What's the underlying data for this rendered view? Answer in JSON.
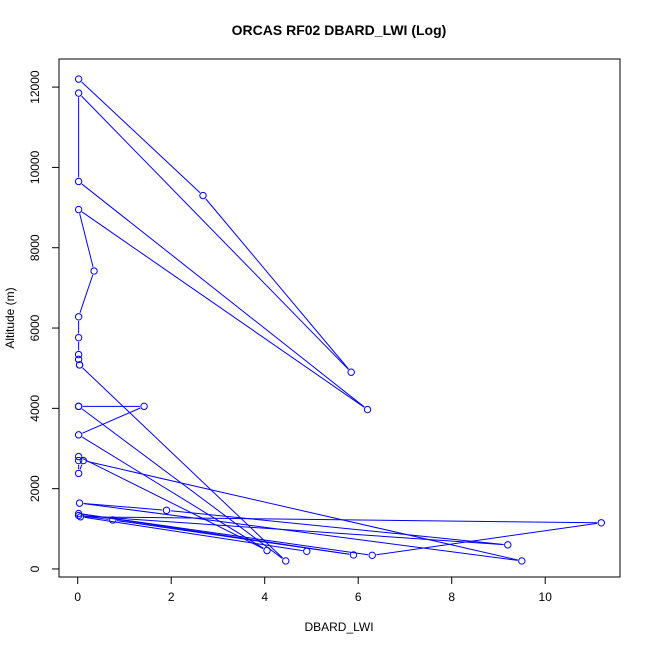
{
  "chart_data": {
    "type": "line",
    "title": "ORCAS RF02 DBARD_LWI (Log)",
    "xlabel": "DBARD_LWI",
    "ylabel": "Altitude (m)",
    "xlim": [
      -0.4,
      11.6
    ],
    "ylim": [
      -200,
      12700
    ],
    "xticks": [
      0,
      2,
      4,
      6,
      8,
      10
    ],
    "yticks": [
      0,
      2000,
      4000,
      6000,
      8000,
      10000,
      12000
    ],
    "series_color": "#0000ff",
    "marker": "open-circle",
    "x": [
      0.02,
      2.68,
      5.85,
      0.02,
      0.02,
      6.2,
      0.02,
      0.35,
      0.02,
      0.02,
      0.02,
      0.02,
      0.04,
      0.04,
      4.45,
      0.02,
      0.02,
      1.42,
      0.02,
      4.05,
      0.02,
      0.02,
      0.02,
      0.12,
      9.5,
      0.04,
      1.9,
      9.2,
      0.02,
      0.75,
      5.9,
      0.02,
      6.3,
      11.2,
      0.06,
      4.9
    ],
    "y": [
      12200,
      9300,
      4900,
      11850,
      9650,
      3970,
      8950,
      7420,
      6280,
      5760,
      5340,
      5220,
      5080,
      5080,
      200,
      4050,
      4050,
      4050,
      3340,
      460,
      2800,
      2700,
      2380,
      2700,
      200,
      1640,
      1460,
      600,
      1330,
      1220,
      350,
      1380,
      340,
      1150,
      1300,
      440
    ]
  }
}
